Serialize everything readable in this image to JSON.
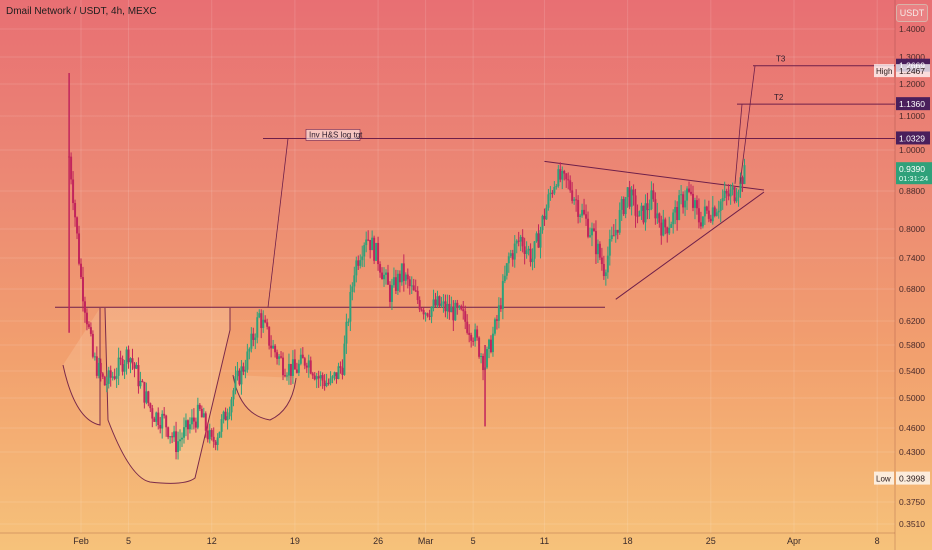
{
  "header": {
    "symbol_title": "Dmail Network / USDT, 4h, MEXC",
    "currency": "USDT"
  },
  "colors": {
    "up": "#2fa17a",
    "down": "#c2255c",
    "line": "#6e1f4a",
    "badge": "#4a1f5c"
  },
  "chart_data": {
    "type": "candlestick",
    "title": "Dmail Network / USDT, 4h, MEXC",
    "scale": "log",
    "ylim": [
      0.35,
      1.45
    ],
    "y_ticks": [
      "1.4000",
      "1.3000",
      "1.2000",
      "1.1000",
      "1.0000",
      "0.8800",
      "0.8000",
      "0.7400",
      "0.6800",
      "0.6200",
      "0.5800",
      "0.5400",
      "0.5000",
      "0.4600",
      "0.4300",
      "0.3750",
      "0.3510"
    ],
    "y_tick_values": [
      1.4,
      1.3,
      1.2,
      1.1,
      1.0,
      0.88,
      0.8,
      0.74,
      0.68,
      0.62,
      0.58,
      0.54,
      0.5,
      0.46,
      0.43,
      0.375,
      0.351
    ],
    "x_labels": [
      "Feb",
      "5",
      "12",
      "19",
      "26",
      "Mar",
      "5",
      "11",
      "18",
      "25",
      "Apr",
      "8"
    ],
    "x_label_dates": [
      "2024-02-01",
      "2024-02-05",
      "2024-02-12",
      "2024-02-19",
      "2024-02-26",
      "2024-03-01",
      "2024-03-05",
      "2024-03-11",
      "2024-03-18",
      "2024-03-25",
      "2024-04-01",
      "2024-04-08"
    ],
    "price_path": [
      [
        "2024-01-31",
        0.98
      ],
      [
        "2024-02-01",
        0.7
      ],
      [
        "2024-02-02",
        0.56
      ],
      [
        "2024-02-03",
        0.52
      ],
      [
        "2024-02-04",
        0.54
      ],
      [
        "2024-02-05",
        0.57
      ],
      [
        "2024-02-06",
        0.52
      ],
      [
        "2024-02-07",
        0.48
      ],
      [
        "2024-02-08",
        0.47
      ],
      [
        "2024-02-09",
        0.44
      ],
      [
        "2024-02-10",
        0.46
      ],
      [
        "2024-02-11",
        0.48
      ],
      [
        "2024-02-12",
        0.44
      ],
      [
        "2024-02-13",
        0.47
      ],
      [
        "2024-02-14",
        0.52
      ],
      [
        "2024-02-15",
        0.56
      ],
      [
        "2024-02-16",
        0.63
      ],
      [
        "2024-02-17",
        0.58
      ],
      [
        "2024-02-18",
        0.55
      ],
      [
        "2024-02-19",
        0.54
      ],
      [
        "2024-02-20",
        0.56
      ],
      [
        "2024-02-21",
        0.53
      ],
      [
        "2024-02-22",
        0.52
      ],
      [
        "2024-02-23",
        0.55
      ],
      [
        "2024-02-24",
        0.72
      ],
      [
        "2024-02-25",
        0.79
      ],
      [
        "2024-02-26",
        0.74
      ],
      [
        "2024-02-27",
        0.67
      ],
      [
        "2024-02-28",
        0.71
      ],
      [
        "2024-02-29",
        0.67
      ],
      [
        "2024-03-01",
        0.64
      ],
      [
        "2024-03-02",
        0.65
      ],
      [
        "2024-03-03",
        0.64
      ],
      [
        "2024-03-04",
        0.63
      ],
      [
        "2024-03-05",
        0.6
      ],
      [
        "2024-03-06",
        0.55
      ],
      [
        "2024-03-07",
        0.62
      ],
      [
        "2024-03-08",
        0.74
      ],
      [
        "2024-03-09",
        0.78
      ],
      [
        "2024-03-10",
        0.74
      ],
      [
        "2024-03-11",
        0.83
      ],
      [
        "2024-03-12",
        0.92
      ],
      [
        "2024-03-13",
        0.9
      ],
      [
        "2024-03-14",
        0.84
      ],
      [
        "2024-03-15",
        0.79
      ],
      [
        "2024-03-16",
        0.72
      ],
      [
        "2024-03-17",
        0.8
      ],
      [
        "2024-03-18",
        0.88
      ],
      [
        "2024-03-19",
        0.82
      ],
      [
        "2024-03-20",
        0.86
      ],
      [
        "2024-03-21",
        0.8
      ],
      [
        "2024-03-22",
        0.83
      ],
      [
        "2024-03-23",
        0.88
      ],
      [
        "2024-03-24",
        0.82
      ],
      [
        "2024-03-25",
        0.84
      ],
      [
        "2024-03-26",
        0.86
      ],
      [
        "2024-03-27",
        0.88
      ],
      [
        "2024-03-28",
        0.94
      ]
    ],
    "low_point": [
      "2024-03-06",
      0.462
    ],
    "high_point": [
      "2024-01-31",
      1.24
    ],
    "annotations": [
      {
        "label": "Inv H&S log tgt",
        "value": 1.0329
      },
      {
        "label": "T2",
        "value": 1.136
      },
      {
        "label": "T3",
        "value": 1.2669
      }
    ],
    "neckline_value": 0.645,
    "wedge": {
      "upper": [
        [
          "2024-03-11",
          0.965
        ],
        [
          "2024-03-28",
          0.9
        ]
      ],
      "lower": [
        [
          "2024-03-17",
          0.66
        ],
        [
          "2024-03-28",
          0.89
        ]
      ]
    },
    "price_labels": [
      {
        "text": "1.2669",
        "value": 1.2669,
        "kind": "badge"
      },
      {
        "text": "1.2467",
        "value": 1.2467,
        "kind": "plain",
        "tag": "High"
      },
      {
        "text": "1.1360",
        "value": 1.136,
        "kind": "badge"
      },
      {
        "text": "1.0329",
        "value": 1.0329,
        "kind": "badge"
      },
      {
        "text": "0.9390",
        "value": 0.939,
        "kind": "current",
        "sub": "01:31:24"
      },
      {
        "text": "0.3998",
        "value": 0.3998,
        "kind": "plain",
        "tag": "Low"
      }
    ],
    "grid": true,
    "legend": "none"
  }
}
